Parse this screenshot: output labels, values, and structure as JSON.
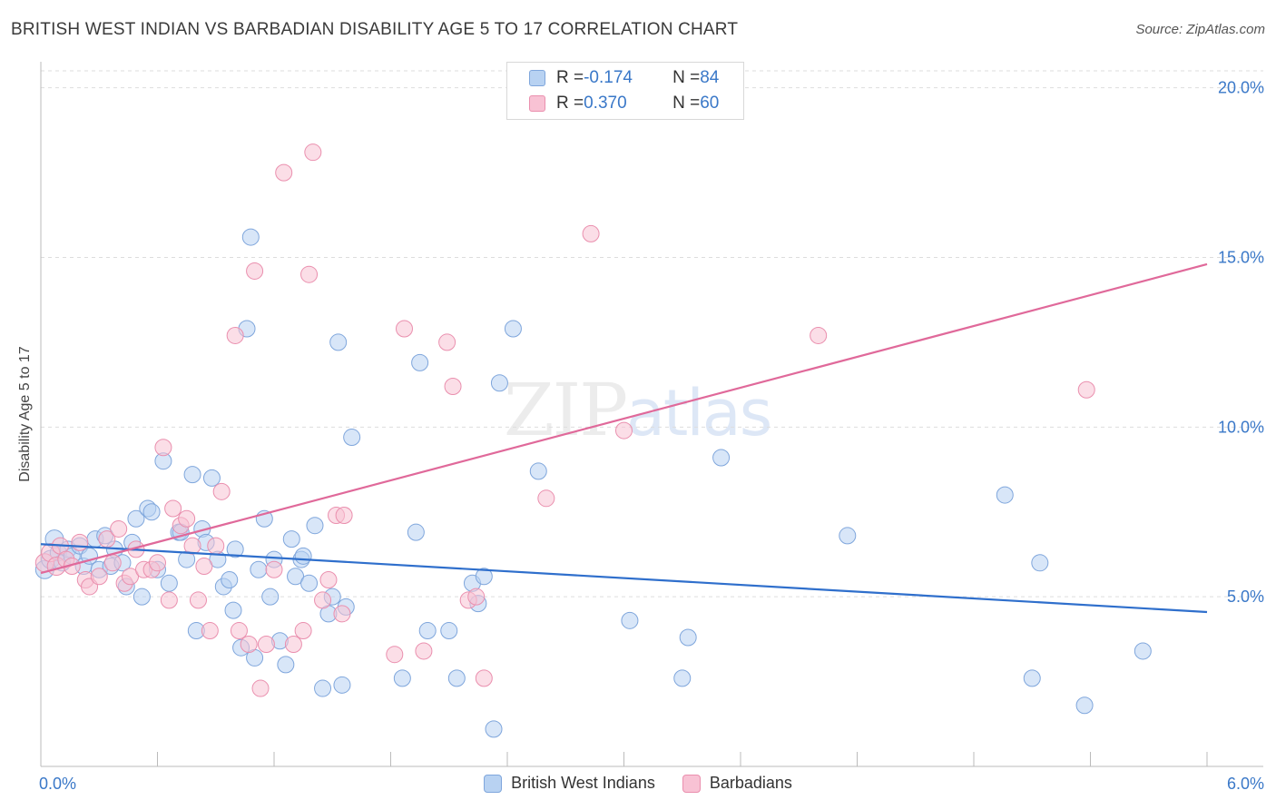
{
  "header": {
    "title": "BRITISH WEST INDIAN VS BARBADIAN DISABILITY AGE 5 TO 17 CORRELATION CHART",
    "source": "Source: ZipAtlas.com"
  },
  "watermark": {
    "zip": "ZIP",
    "atlas": "atlas"
  },
  "legend_top": {
    "rows": [
      {
        "r_label": "R = ",
        "r_value": "-0.174",
        "n_label": "N = ",
        "n_value": "84"
      },
      {
        "r_label": "R = ",
        "r_value": "0.370",
        "n_label": "N = ",
        "n_value": "60"
      }
    ]
  },
  "colors": {
    "blue_fill": "#b8d2f2",
    "blue_stroke": "#7fa6dc",
    "blue_line": "#2f6fcc",
    "pink_fill": "#f8c2d4",
    "pink_stroke": "#ea8fae",
    "pink_line": "#e0699a",
    "grid": "#dddddd",
    "tick_label": "#3a78c8"
  },
  "chart_data": {
    "type": "scatter",
    "title": "BRITISH WEST INDIAN VS BARBADIAN DISABILITY AGE 5 TO 17 CORRELATION CHART",
    "xlabel": "",
    "ylabel": "Disability Age 5 to 17",
    "xlim": [
      0,
      6
    ],
    "ylim": [
      0,
      20.5
    ],
    "x_tick_labels": [
      "0.0%",
      "6.0%"
    ],
    "y_ticks": [
      5,
      10,
      15,
      20
    ],
    "y_tick_labels": [
      "5.0%",
      "10.0%",
      "15.0%",
      "20.0%"
    ],
    "grid": true,
    "legend_position": "bottom",
    "series": [
      {
        "name": "British West Indians",
        "R": -0.174,
        "N": 84,
        "trend": {
          "x": [
            0,
            6
          ],
          "y": [
            6.55,
            4.55
          ]
        },
        "points": [
          [
            0.02,
            5.8
          ],
          [
            0.05,
            6.1
          ],
          [
            0.07,
            6.7
          ],
          [
            0.09,
            6.3
          ],
          [
            0.11,
            6.0
          ],
          [
            0.14,
            6.4
          ],
          [
            0.16,
            6.2
          ],
          [
            0.2,
            6.5
          ],
          [
            0.22,
            5.9
          ],
          [
            0.25,
            6.2
          ],
          [
            0.28,
            6.7
          ],
          [
            0.3,
            5.8
          ],
          [
            0.33,
            6.8
          ],
          [
            0.36,
            5.9
          ],
          [
            0.38,
            6.4
          ],
          [
            0.42,
            6.0
          ],
          [
            0.44,
            5.3
          ],
          [
            0.47,
            6.6
          ],
          [
            0.49,
            7.3
          ],
          [
            0.52,
            5.0
          ],
          [
            0.55,
            7.6
          ],
          [
            0.57,
            7.5
          ],
          [
            0.6,
            5.8
          ],
          [
            0.63,
            9.0
          ],
          [
            0.66,
            5.4
          ],
          [
            0.71,
            6.9
          ],
          [
            0.72,
            6.9
          ],
          [
            0.75,
            6.1
          ],
          [
            0.78,
            8.6
          ],
          [
            0.8,
            4.0
          ],
          [
            0.83,
            7.0
          ],
          [
            0.85,
            6.6
          ],
          [
            0.88,
            8.5
          ],
          [
            0.91,
            6.1
          ],
          [
            0.94,
            5.3
          ],
          [
            0.97,
            5.5
          ],
          [
            0.99,
            4.6
          ],
          [
            1.0,
            6.4
          ],
          [
            1.03,
            3.5
          ],
          [
            1.06,
            12.9
          ],
          [
            1.08,
            15.6
          ],
          [
            1.1,
            3.2
          ],
          [
            1.12,
            5.8
          ],
          [
            1.15,
            7.3
          ],
          [
            1.18,
            5.0
          ],
          [
            1.2,
            6.1
          ],
          [
            1.23,
            3.7
          ],
          [
            1.26,
            3.0
          ],
          [
            1.29,
            6.7
          ],
          [
            1.31,
            5.6
          ],
          [
            1.34,
            6.1
          ],
          [
            1.35,
            6.2
          ],
          [
            1.38,
            5.4
          ],
          [
            1.41,
            7.1
          ],
          [
            1.45,
            2.3
          ],
          [
            1.48,
            4.5
          ],
          [
            1.5,
            5.0
          ],
          [
            1.53,
            12.5
          ],
          [
            1.55,
            2.4
          ],
          [
            1.57,
            4.7
          ],
          [
            1.6,
            9.7
          ],
          [
            1.86,
            2.6
          ],
          [
            1.93,
            6.9
          ],
          [
            1.95,
            11.9
          ],
          [
            1.99,
            4.0
          ],
          [
            2.1,
            4.0
          ],
          [
            2.14,
            2.6
          ],
          [
            2.22,
            5.4
          ],
          [
            2.25,
            4.8
          ],
          [
            2.28,
            5.6
          ],
          [
            2.33,
            1.1
          ],
          [
            2.36,
            11.3
          ],
          [
            2.43,
            12.9
          ],
          [
            2.56,
            8.7
          ],
          [
            3.03,
            4.3
          ],
          [
            3.3,
            2.6
          ],
          [
            3.33,
            3.8
          ],
          [
            3.5,
            9.1
          ],
          [
            4.15,
            6.8
          ],
          [
            4.96,
            8.0
          ],
          [
            5.1,
            2.6
          ],
          [
            5.14,
            6.0
          ],
          [
            5.37,
            1.8
          ],
          [
            5.67,
            3.4
          ]
        ]
      },
      {
        "name": "Barbadians",
        "R": 0.37,
        "N": 60,
        "trend": {
          "x": [
            0,
            6
          ],
          "y": [
            5.7,
            14.8
          ]
        },
        "points": [
          [
            0.02,
            6.0
          ],
          [
            0.05,
            6.3
          ],
          [
            0.08,
            5.9
          ],
          [
            0.1,
            6.5
          ],
          [
            0.13,
            6.1
          ],
          [
            0.16,
            5.9
          ],
          [
            0.2,
            6.6
          ],
          [
            0.23,
            5.5
          ],
          [
            0.25,
            5.3
          ],
          [
            0.3,
            5.6
          ],
          [
            0.34,
            6.7
          ],
          [
            0.37,
            6.0
          ],
          [
            0.4,
            7.0
          ],
          [
            0.43,
            5.4
          ],
          [
            0.46,
            5.6
          ],
          [
            0.49,
            6.4
          ],
          [
            0.53,
            5.8
          ],
          [
            0.57,
            5.8
          ],
          [
            0.6,
            6.0
          ],
          [
            0.63,
            9.4
          ],
          [
            0.66,
            4.9
          ],
          [
            0.68,
            7.6
          ],
          [
            0.72,
            7.1
          ],
          [
            0.75,
            7.3
          ],
          [
            0.78,
            6.5
          ],
          [
            0.81,
            4.9
          ],
          [
            0.84,
            5.9
          ],
          [
            0.87,
            4.0
          ],
          [
            0.9,
            6.5
          ],
          [
            0.93,
            8.1
          ],
          [
            1.0,
            12.7
          ],
          [
            1.02,
            4.0
          ],
          [
            1.07,
            3.6
          ],
          [
            1.1,
            14.6
          ],
          [
            1.13,
            2.3
          ],
          [
            1.16,
            3.6
          ],
          [
            1.2,
            5.8
          ],
          [
            1.25,
            17.5
          ],
          [
            1.3,
            3.6
          ],
          [
            1.35,
            4.0
          ],
          [
            1.38,
            14.5
          ],
          [
            1.4,
            18.1
          ],
          [
            1.45,
            4.9
          ],
          [
            1.48,
            5.5
          ],
          [
            1.52,
            7.4
          ],
          [
            1.55,
            4.5
          ],
          [
            1.56,
            7.4
          ],
          [
            1.82,
            3.3
          ],
          [
            1.87,
            12.9
          ],
          [
            1.97,
            3.4
          ],
          [
            2.09,
            12.5
          ],
          [
            2.12,
            11.2
          ],
          [
            2.2,
            4.9
          ],
          [
            2.24,
            5.0
          ],
          [
            2.28,
            2.6
          ],
          [
            2.6,
            7.9
          ],
          [
            2.83,
            15.7
          ],
          [
            3.0,
            9.9
          ],
          [
            4.0,
            12.7
          ],
          [
            5.38,
            11.1
          ]
        ]
      }
    ],
    "extra_points_note": ""
  },
  "legend_bottom": {
    "items": [
      {
        "label": "British West Indians"
      },
      {
        "label": "Barbadians"
      }
    ]
  }
}
